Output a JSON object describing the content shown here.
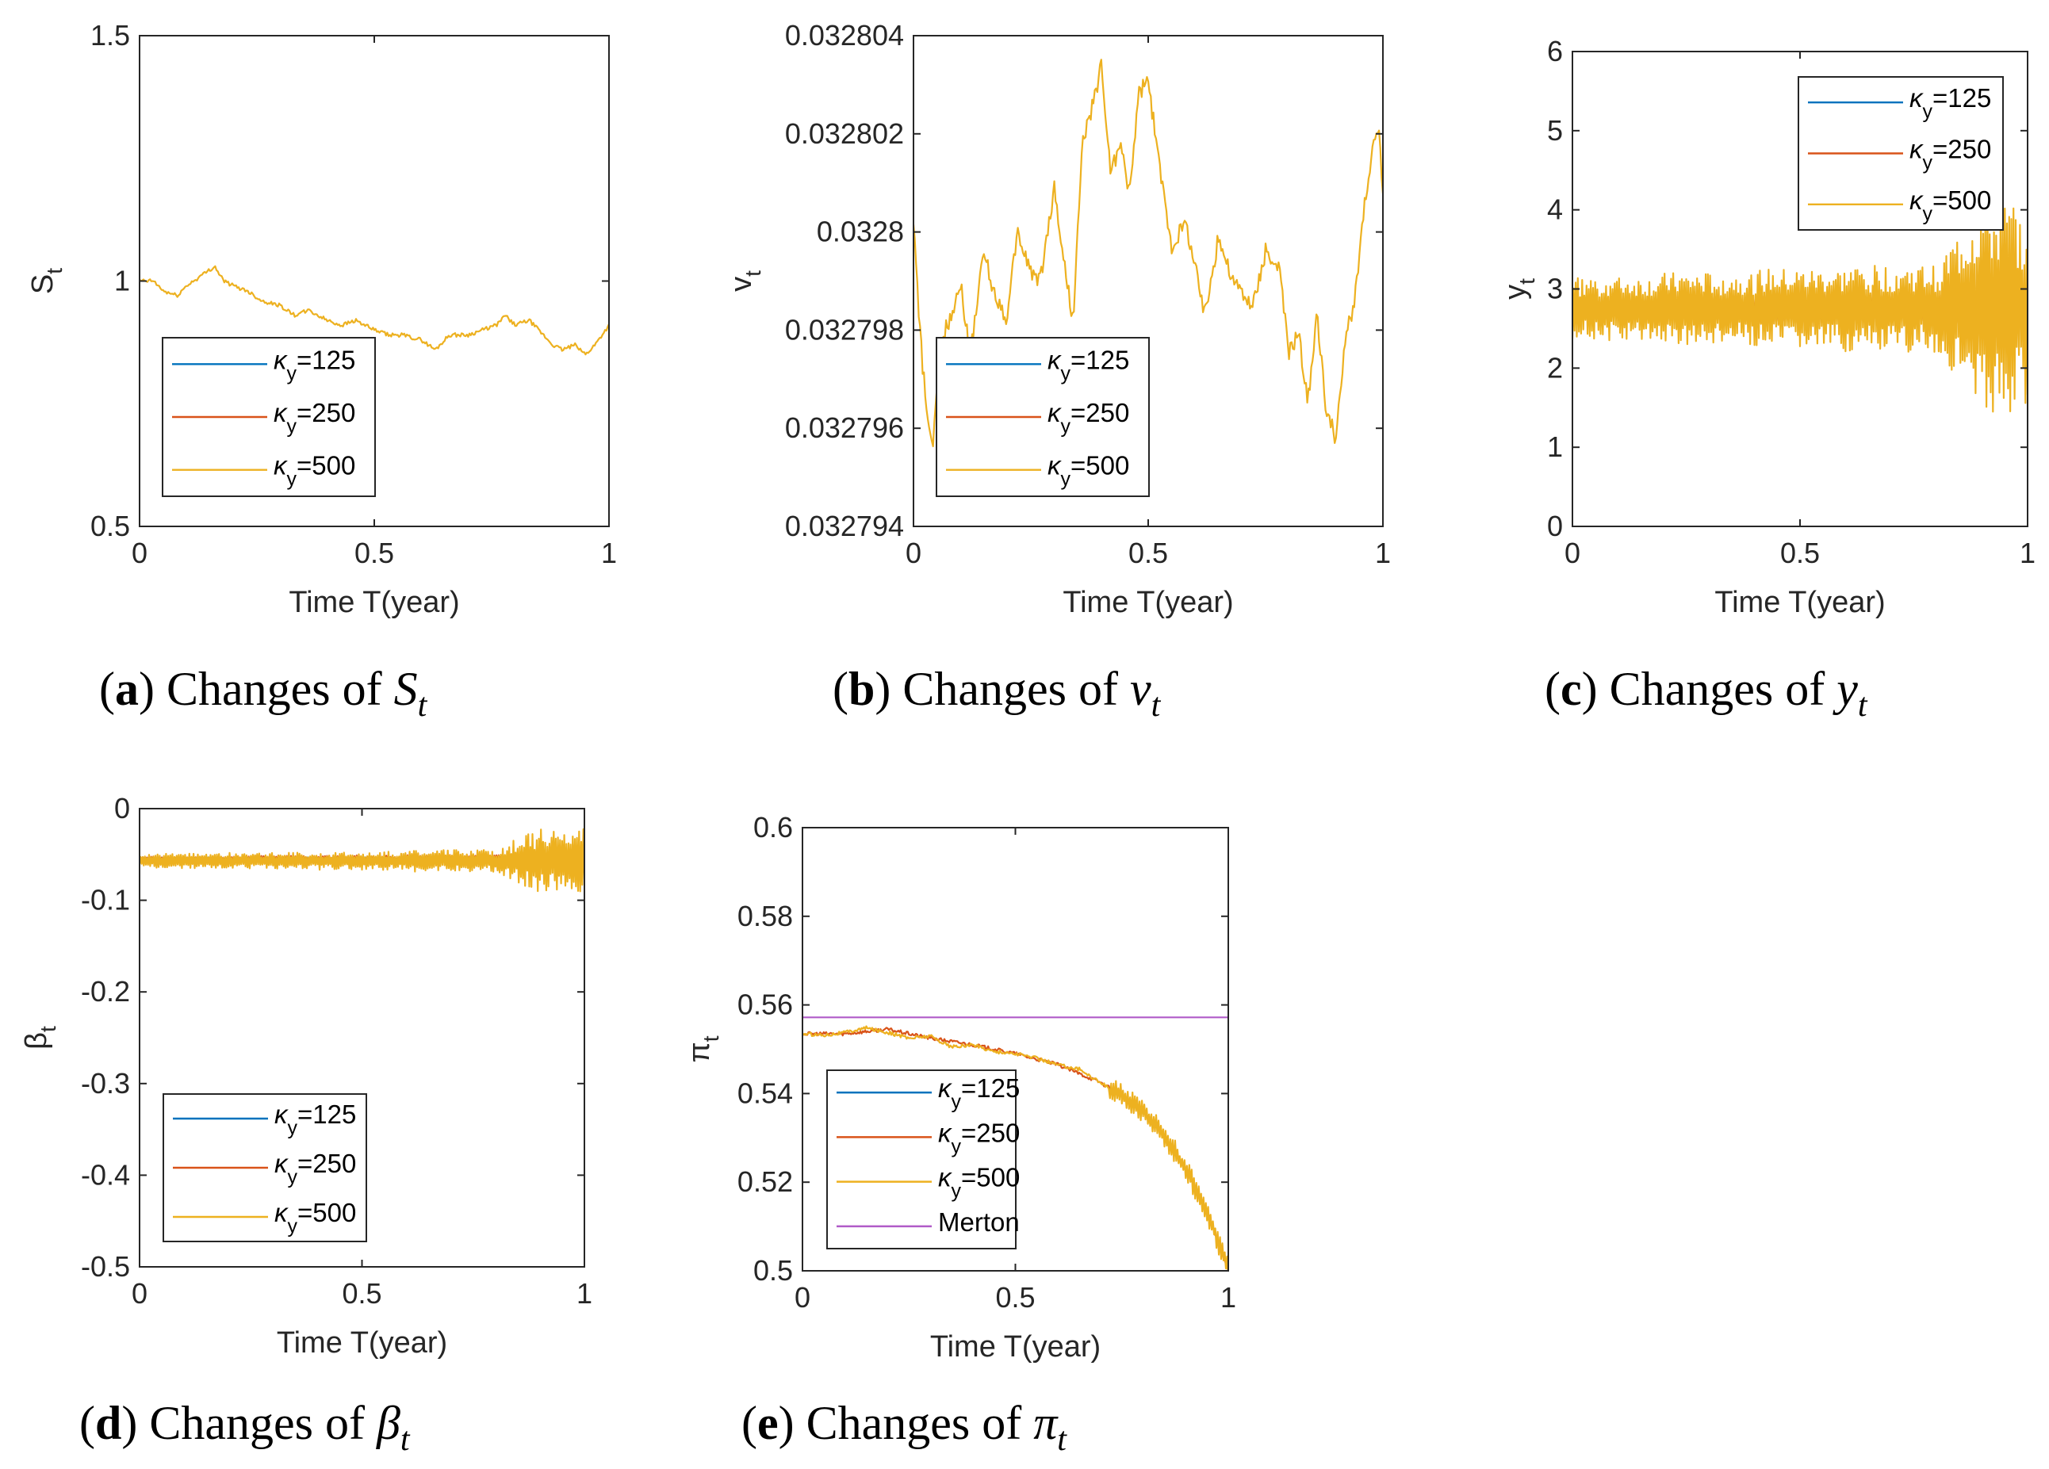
{
  "colors": {
    "kappa125": "#0072BD",
    "kappa250": "#D95319",
    "kappa500": "#EDB120",
    "merton": "#B05BC8",
    "axis": "#262626"
  },
  "chart_data": [
    {
      "id": "a",
      "type": "line",
      "caption": {
        "letter": "a",
        "text": "Changes of",
        "symbol": "S",
        "sub": "t"
      },
      "ylabel": {
        "main": "S",
        "sub": "t"
      },
      "xlabel": "Time T(year)",
      "xlim": [
        0,
        1
      ],
      "ylim": [
        0.5,
        1.5
      ],
      "xticks": [
        "0",
        "0.5",
        "1"
      ],
      "xtickvals": [
        0,
        0.5,
        1
      ],
      "yticks": [
        "0.5",
        "1",
        "1.5"
      ],
      "ytickvals": [
        0.5,
        1,
        1.5
      ],
      "legend_position": "bottom-left",
      "series": [
        {
          "name": "κy=125",
          "label_main": "κ",
          "label_sub": "y",
          "label_rest": "=125",
          "color_key": "kappa125",
          "visible": false,
          "x": [
            0,
            0.05,
            0.1,
            0.15,
            0.2,
            0.25,
            0.3,
            0.35,
            0.4,
            0.45,
            0.5,
            0.55,
            0.6,
            0.65,
            0.7,
            0.75,
            0.8,
            0.85,
            0.9,
            0.95,
            1
          ],
          "y": [
            1.0,
            0.98,
            0.99,
            1.02,
            0.99,
            0.97,
            0.93,
            0.92,
            0.9,
            0.9,
            0.89,
            0.88,
            0.87,
            0.88,
            0.89,
            0.9,
            0.92,
            0.89,
            0.86,
            0.86,
            0.91
          ]
        },
        {
          "name": "κy=250",
          "label_main": "κ",
          "label_sub": "y",
          "label_rest": "=250",
          "color_key": "kappa250",
          "visible": false,
          "x": [
            0,
            0.05,
            0.1,
            0.15,
            0.2,
            0.25,
            0.3,
            0.35,
            0.4,
            0.45,
            0.5,
            0.55,
            0.6,
            0.65,
            0.7,
            0.75,
            0.8,
            0.85,
            0.9,
            0.95,
            1
          ],
          "y": [
            1.0,
            0.98,
            0.99,
            1.02,
            0.99,
            0.97,
            0.93,
            0.92,
            0.9,
            0.9,
            0.89,
            0.88,
            0.87,
            0.88,
            0.89,
            0.9,
            0.92,
            0.89,
            0.86,
            0.86,
            0.91
          ]
        },
        {
          "name": "κy=500",
          "label_main": "κ",
          "label_sub": "y",
          "label_rest": "=500",
          "color_key": "kappa500",
          "visible": true,
          "x": [
            0,
            0.03,
            0.05,
            0.08,
            0.1,
            0.13,
            0.16,
            0.18,
            0.2,
            0.23,
            0.26,
            0.3,
            0.33,
            0.36,
            0.4,
            0.43,
            0.46,
            0.5,
            0.53,
            0.56,
            0.6,
            0.63,
            0.66,
            0.7,
            0.73,
            0.76,
            0.78,
            0.8,
            0.83,
            0.86,
            0.88,
            0.9,
            0.93,
            0.95,
            0.97,
            1
          ],
          "y": [
            1.0,
            1.0,
            0.98,
            0.97,
            0.99,
            1.01,
            1.03,
            1.0,
            0.99,
            0.98,
            0.96,
            0.95,
            0.93,
            0.94,
            0.92,
            0.91,
            0.92,
            0.9,
            0.89,
            0.89,
            0.88,
            0.86,
            0.89,
            0.89,
            0.9,
            0.91,
            0.93,
            0.91,
            0.92,
            0.89,
            0.87,
            0.86,
            0.87,
            0.85,
            0.87,
            0.91
          ]
        }
      ]
    },
    {
      "id": "b",
      "type": "line",
      "caption": {
        "letter": "b",
        "text": "Changes of",
        "symbol": "v",
        "sub": "t"
      },
      "ylabel": {
        "main": "v",
        "sub": "t"
      },
      "xlabel": "Time T(year)",
      "xlim": [
        0,
        1
      ],
      "ylim": [
        0.032794,
        0.032804
      ],
      "xticks": [
        "0",
        "0.5",
        "1"
      ],
      "xtickvals": [
        0,
        0.5,
        1
      ],
      "yticks": [
        "0.032794",
        "0.032796",
        "0.032798",
        "0.0328",
        "0.032802",
        "0.032804"
      ],
      "ytickvals": [
        0.032794,
        0.032796,
        0.032798,
        0.0328,
        0.032802,
        0.032804
      ],
      "legend_position": "bottom-left",
      "series": [
        {
          "name": "κy=125",
          "label_main": "κ",
          "label_sub": "y",
          "label_rest": "=125",
          "color_key": "kappa125",
          "visible": false,
          "x": [
            0,
            1
          ],
          "y": [
            0.0328,
            0.0328
          ]
        },
        {
          "name": "κy=250",
          "label_main": "κ",
          "label_sub": "y",
          "label_rest": "=250",
          "color_key": "kappa250",
          "visible": false,
          "x": [
            0,
            1
          ],
          "y": [
            0.0328,
            0.0328
          ]
        },
        {
          "name": "κy=500",
          "label_main": "κ",
          "label_sub": "y",
          "label_rest": "=500",
          "color_key": "kappa500",
          "visible": true,
          "x": [
            0,
            0.01,
            0.02,
            0.03,
            0.04,
            0.05,
            0.06,
            0.08,
            0.1,
            0.12,
            0.15,
            0.17,
            0.2,
            0.22,
            0.25,
            0.27,
            0.3,
            0.32,
            0.34,
            0.36,
            0.38,
            0.4,
            0.42,
            0.44,
            0.46,
            0.48,
            0.5,
            0.52,
            0.55,
            0.58,
            0.6,
            0.62,
            0.65,
            0.68,
            0.7,
            0.72,
            0.75,
            0.78,
            0.8,
            0.82,
            0.84,
            0.86,
            0.88,
            0.9,
            0.92,
            0.94,
            0.96,
            0.97,
            0.98,
            0.99,
            1
          ],
          "y": [
            0.0328003,
            0.0327985,
            0.0327972,
            0.0327962,
            0.0327955,
            0.0327968,
            0.0327978,
            0.0327983,
            0.032799,
            0.0327975,
            0.0327996,
            0.0327988,
            0.0327982,
            0.0328,
            0.0327992,
            0.032799,
            0.0328009,
            0.0327994,
            0.0327982,
            0.0328018,
            0.0328025,
            0.0328034,
            0.0328012,
            0.0328018,
            0.0328008,
            0.0328028,
            0.0328031,
            0.0328016,
            0.0327997,
            0.0328002,
            0.0327993,
            0.0327983,
            0.0327999,
            0.032799,
            0.0327988,
            0.0327984,
            0.0327996,
            0.0327992,
            0.0327975,
            0.032798,
            0.0327965,
            0.0327983,
            0.0327963,
            0.0327958,
            0.0327978,
            0.0327986,
            0.0328005,
            0.032801,
            0.0328018,
            0.0328022,
            0.0328008
          ]
        }
      ]
    },
    {
      "id": "c",
      "type": "line",
      "caption": {
        "letter": "c",
        "text": "Changes of",
        "symbol": "y",
        "sub": "t"
      },
      "ylabel": {
        "main": "y",
        "sub": "t"
      },
      "xlabel": "Time T(year)",
      "xlim": [
        0,
        1
      ],
      "ylim": [
        0,
        6
      ],
      "xticks": [
        "0",
        "0.5",
        "1"
      ],
      "xtickvals": [
        0,
        0.5,
        1
      ],
      "yticks": [
        "0",
        "1",
        "2",
        "3",
        "4",
        "5",
        "6"
      ],
      "ytickvals": [
        0,
        1,
        2,
        3,
        4,
        5,
        6
      ],
      "legend_position": "top-right",
      "series": [
        {
          "name": "κy=125",
          "label_main": "κ",
          "label_sub": "y",
          "label_rest": "=125",
          "color_key": "kappa125",
          "visible": true,
          "mean": 2.75,
          "amplitude": [
            0.08,
            0.08,
            0.08,
            0.1,
            0.1
          ]
        },
        {
          "name": "κy=250",
          "label_main": "κ",
          "label_sub": "y",
          "label_rest": "=250",
          "color_key": "kappa250",
          "visible": true,
          "mean": 2.75,
          "amplitude": [
            0.1,
            0.15,
            0.2,
            0.2,
            0.25
          ]
        },
        {
          "name": "κy=500",
          "label_main": "κ",
          "label_sub": "y",
          "label_rest": "=500",
          "color_key": "kappa500",
          "visible": true,
          "mean": 2.75,
          "amplitude": [
            0.4,
            0.45,
            0.5,
            0.55,
            1.35
          ]
        }
      ]
    },
    {
      "id": "d",
      "type": "line",
      "caption": {
        "letter": "d",
        "text": "Changes of",
        "symbol": "β",
        "sub": "t"
      },
      "ylabel": {
        "main": "β",
        "sub": "t"
      },
      "xlabel": "Time T(year)",
      "xlim": [
        0,
        1
      ],
      "ylim": [
        -0.5,
        0
      ],
      "xticks": [
        "0",
        "0.5",
        "1"
      ],
      "xtickvals": [
        0,
        0.5,
        1
      ],
      "yticks": [
        "-0.5",
        "-0.4",
        "-0.3",
        "-0.2",
        "-0.1",
        "0"
      ],
      "ytickvals": [
        -0.5,
        -0.4,
        -0.3,
        -0.2,
        -0.1,
        0
      ],
      "legend_position": "bottom-left",
      "series": [
        {
          "name": "κy=125",
          "label_main": "κ",
          "label_sub": "y",
          "label_rest": "=125",
          "color_key": "kappa125",
          "visible": true,
          "mean": -0.055,
          "amplitude": [
            0.002,
            0.002,
            0.002,
            0.003,
            0.003
          ]
        },
        {
          "name": "κy=250",
          "label_main": "κ",
          "label_sub": "y",
          "label_rest": "=250",
          "color_key": "kappa250",
          "visible": true,
          "mean": -0.055,
          "amplitude": [
            0.003,
            0.004,
            0.004,
            0.005,
            0.006
          ]
        },
        {
          "name": "κy=500",
          "label_main": "κ",
          "label_sub": "y",
          "label_rest": "=500",
          "color_key": "kappa500",
          "visible": true,
          "mean": -0.057,
          "amplitude": [
            0.008,
            0.009,
            0.01,
            0.012,
            0.035
          ]
        }
      ]
    },
    {
      "id": "e",
      "type": "line",
      "caption": {
        "letter": "e",
        "text": "Changes of",
        "symbol": "π",
        "sub": "t"
      },
      "ylabel": {
        "main": "π",
        "sub": "t"
      },
      "xlabel": "Time T(year)",
      "xlim": [
        0,
        1
      ],
      "ylim": [
        0.5,
        0.6
      ],
      "xticks": [
        "0",
        "0.5",
        "1"
      ],
      "xtickvals": [
        0,
        0.5,
        1
      ],
      "yticks": [
        "0.5",
        "0.52",
        "0.54",
        "0.56",
        "0.58",
        "0.6"
      ],
      "ytickvals": [
        0.5,
        0.52,
        0.54,
        0.56,
        0.58,
        0.6
      ],
      "legend_position": "bottom-left",
      "series": [
        {
          "name": "κy=125",
          "label_main": "κ",
          "label_sub": "y",
          "label_rest": "=125",
          "color_key": "kappa125",
          "visible": false,
          "x": [
            0,
            1
          ],
          "y": [
            0.554,
            0.5
          ]
        },
        {
          "name": "κy=250",
          "label_main": "κ",
          "label_sub": "y",
          "label_rest": "=250",
          "color_key": "kappa250",
          "visible": true,
          "x": [
            0,
            0.1,
            0.2,
            0.3,
            0.4,
            0.5,
            0.6,
            0.7,
            0.75,
            0.8,
            0.85,
            0.9,
            0.95,
            1
          ],
          "y": [
            0.5535,
            0.5535,
            0.5545,
            0.5525,
            0.551,
            0.549,
            0.5465,
            0.5425,
            0.5395,
            0.536,
            0.5305,
            0.523,
            0.5135,
            0.5
          ]
        },
        {
          "name": "κy=500",
          "label_main": "κ",
          "label_sub": "y",
          "label_rest": "=500",
          "color_key": "kappa500",
          "visible": true,
          "x": [
            0,
            0.05,
            0.1,
            0.15,
            0.2,
            0.25,
            0.3,
            0.35,
            0.4,
            0.45,
            0.5,
            0.55,
            0.6,
            0.65,
            0.7,
            0.75,
            0.8,
            0.85,
            0.9,
            0.95,
            1
          ],
          "y": [
            0.5535,
            0.5532,
            0.5538,
            0.5548,
            0.5538,
            0.5525,
            0.553,
            0.5505,
            0.551,
            0.5495,
            0.549,
            0.548,
            0.5465,
            0.5455,
            0.5425,
            0.5395,
            0.536,
            0.5305,
            0.523,
            0.5135,
            0.5
          ],
          "oscillation_from": 0.72,
          "oscillation_amplitude": 0.0025
        },
        {
          "name": "Merton",
          "label_main": "Merton",
          "label_sub": "",
          "label_rest": "",
          "color_key": "merton",
          "visible": true,
          "x": [
            0,
            1
          ],
          "y": [
            0.5572,
            0.5572
          ]
        }
      ]
    }
  ]
}
